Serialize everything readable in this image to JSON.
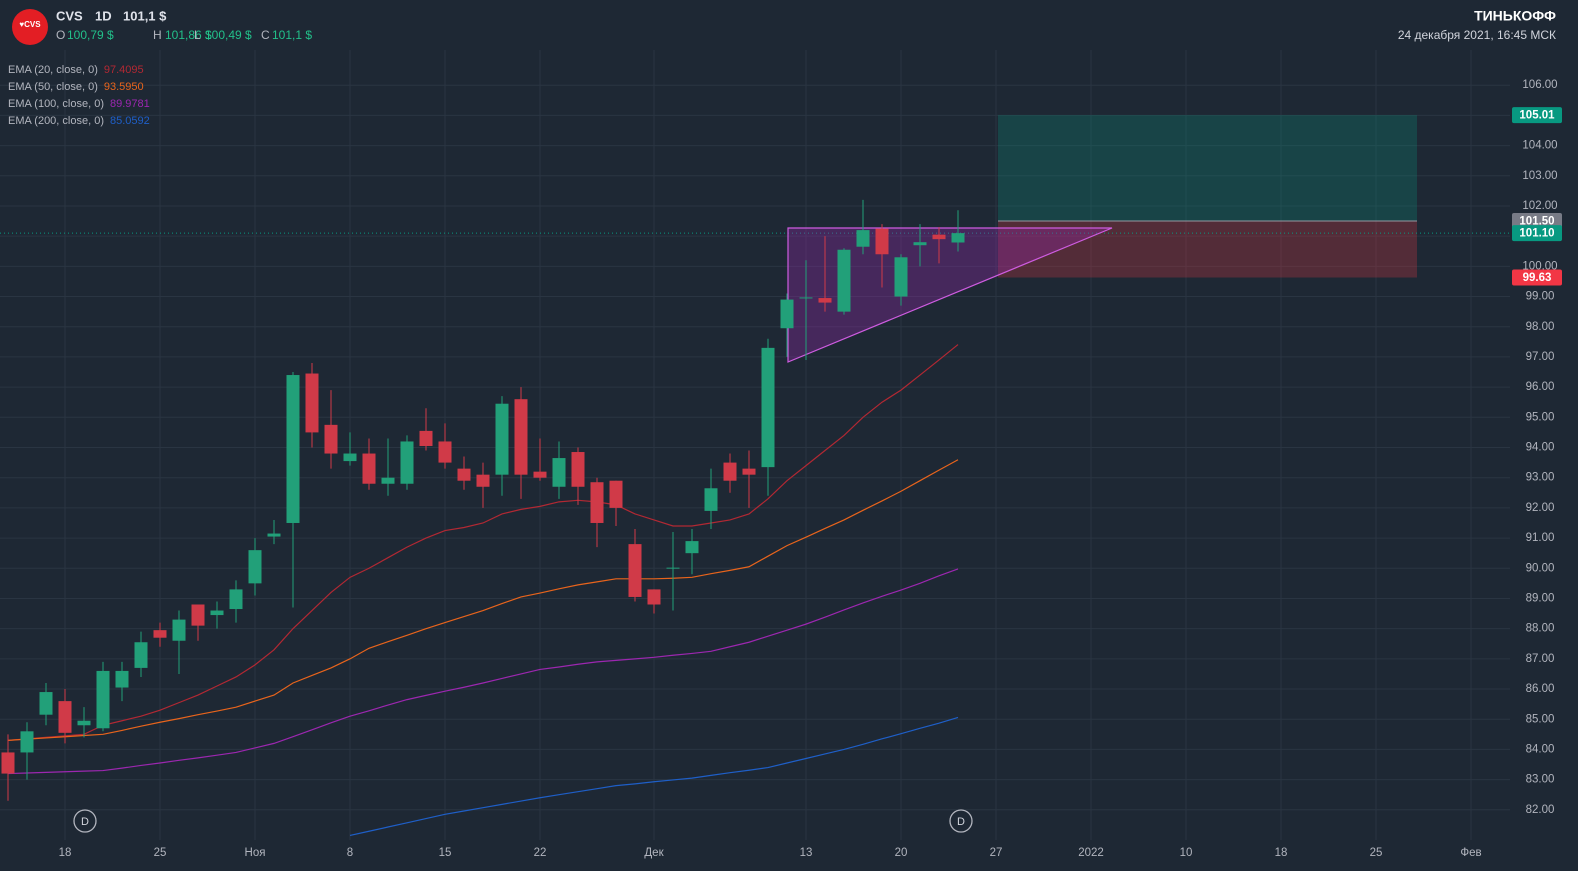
{
  "header": {
    "logo_text": "♥CVS",
    "symbol": "CVS",
    "interval": "1D",
    "price": "101,1 $",
    "open_label": "O",
    "open": "100,79 $",
    "high_label": "H",
    "high": "101,86 $",
    "low_label": "L",
    "low": "100,49 $",
    "close_label": "C",
    "close": "101,1 $",
    "brand": "ТИНЬКОФФ",
    "timestamp": "24 декабря 2021, 16:45 МСК"
  },
  "chart_data": {
    "type": "candlestick",
    "up_color": "#22a079",
    "down_color": "#d03a48",
    "grid": true,
    "categories": [
      null,
      null,
      null,
      "18",
      null,
      null,
      null,
      null,
      "25",
      null,
      null,
      null,
      null,
      "Ноя",
      null,
      null,
      null,
      null,
      "8",
      null,
      null,
      null,
      null,
      "15",
      null,
      null,
      null,
      null,
      "22",
      null,
      null,
      null,
      null,
      null,
      "Дек",
      null,
      null,
      null,
      null,
      null,
      null,
      null,
      "13",
      null,
      null,
      null,
      null,
      "20",
      null,
      null,
      null,
      null,
      "27",
      null,
      null,
      null,
      null,
      "2022",
      null,
      null,
      null,
      null,
      "10",
      null,
      null,
      null,
      null,
      "18",
      null,
      null,
      null,
      null,
      "25",
      null,
      null,
      null,
      null,
      "Фев",
      null,
      null
    ],
    "open": [
      83.9,
      83.9,
      85.15,
      85.6,
      84.8,
      84.7,
      86.05,
      86.7,
      87.95,
      87.6,
      88.8,
      88.45,
      88.65,
      89.5,
      91.05,
      91.5,
      96.45,
      94.75,
      93.55,
      93.8,
      92.8,
      92.8,
      94.55,
      94.2,
      93.3,
      93.1,
      93.1,
      95.6,
      93.2,
      92.7,
      93.85,
      92.85,
      92.9,
      90.8,
      89.3,
      90.0,
      90.5,
      91.9,
      93.5,
      93.3,
      93.35,
      97.95,
      98.95,
      98.95,
      98.5,
      100.65,
      101.25,
      99.0,
      100.7,
      101.05,
      100.79,
      null,
      null,
      null,
      null,
      null,
      null,
      null,
      null,
      null,
      null,
      null,
      null,
      null,
      null,
      null,
      null,
      null,
      null,
      null,
      null,
      null,
      null,
      null,
      null,
      null,
      null,
      null,
      null,
      null
    ],
    "high": [
      84.5,
      84.9,
      86.2,
      86.0,
      85.4,
      86.9,
      86.9,
      87.9,
      88.2,
      88.6,
      88.8,
      88.9,
      89.6,
      91.0,
      91.6,
      96.5,
      96.8,
      95.9,
      94.5,
      94.3,
      94.3,
      94.4,
      95.3,
      94.8,
      93.7,
      93.5,
      95.7,
      96.0,
      94.3,
      94.2,
      94.0,
      93.0,
      92.9,
      91.3,
      89.3,
      91.2,
      91.3,
      93.3,
      93.8,
      93.9,
      97.6,
      99.1,
      100.2,
      101.0,
      100.6,
      102.2,
      101.4,
      100.4,
      101.4,
      101.3,
      101.86,
      null,
      null,
      null,
      null,
      null,
      null,
      null,
      null,
      null,
      null,
      null,
      null,
      null,
      null,
      null,
      null,
      null,
      null,
      null,
      null,
      null,
      null,
      null,
      null,
      null,
      null,
      null,
      null,
      null
    ],
    "low": [
      82.3,
      83.0,
      84.8,
      84.2,
      84.4,
      84.6,
      85.6,
      86.4,
      87.4,
      86.5,
      87.6,
      88.0,
      88.2,
      89.1,
      90.8,
      88.7,
      94.0,
      93.3,
      93.4,
      92.6,
      92.4,
      92.6,
      93.9,
      93.3,
      92.6,
      92.0,
      92.4,
      92.3,
      92.9,
      92.3,
      92.1,
      90.7,
      91.4,
      88.9,
      88.5,
      88.6,
      89.8,
      91.3,
      92.5,
      92.0,
      92.4,
      97.0,
      96.9,
      98.5,
      98.4,
      100.4,
      99.3,
      98.7,
      100.0,
      100.1,
      100.49,
      null,
      null,
      null,
      null,
      null,
      null,
      null,
      null,
      null,
      null,
      null,
      null,
      null,
      null,
      null,
      null,
      null,
      null,
      null,
      null,
      null,
      null,
      null,
      null,
      null,
      null,
      null,
      null,
      null
    ],
    "close": [
      83.2,
      84.6,
      85.9,
      84.55,
      84.95,
      86.6,
      86.6,
      87.55,
      87.7,
      88.3,
      88.1,
      88.6,
      89.3,
      90.6,
      91.15,
      96.4,
      94.5,
      93.8,
      93.8,
      92.8,
      93.0,
      94.2,
      94.05,
      93.5,
      92.9,
      92.7,
      95.45,
      93.1,
      93.0,
      93.65,
      92.7,
      91.5,
      92.0,
      89.05,
      88.8,
      90.02,
      90.9,
      92.65,
      92.9,
      93.1,
      97.3,
      98.9,
      98.97,
      98.8,
      100.55,
      101.2,
      100.4,
      100.3,
      100.8,
      100.9,
      101.1,
      null,
      null,
      null,
      null,
      null,
      null,
      null,
      null,
      null,
      null,
      null,
      null,
      null,
      null,
      null,
      null,
      null,
      null,
      null,
      null,
      null,
      null,
      null,
      null,
      null,
      null,
      null,
      null,
      null
    ],
    "series": [
      {
        "name": "EMA (20, close, 0)",
        "legend_value": "97.4095",
        "color": "#b22833",
        "values": [
          84.3,
          84.35,
          84.4,
          84.45,
          84.5,
          84.8,
          84.95,
          85.1,
          85.3,
          85.55,
          85.8,
          86.1,
          86.4,
          86.8,
          87.3,
          88.0,
          88.6,
          89.2,
          89.7,
          90.0,
          90.35,
          90.7,
          91.0,
          91.25,
          91.35,
          91.5,
          91.8,
          91.95,
          92.05,
          92.2,
          92.25,
          92.2,
          92.1,
          91.8,
          91.6,
          91.4,
          91.4,
          91.5,
          91.6,
          91.8,
          92.3,
          92.9,
          93.4,
          93.9,
          94.4,
          95.0,
          95.5,
          95.9,
          96.4,
          96.9,
          97.4095,
          null,
          null,
          null,
          null,
          null,
          null,
          null,
          null,
          null,
          null,
          null,
          null,
          null,
          null,
          null,
          null,
          null,
          null,
          null,
          null,
          null,
          null,
          null,
          null,
          null,
          null,
          null,
          null,
          null
        ]
      },
      {
        "name": "EMA (50, close, 0)",
        "legend_value": "93.5950",
        "color": "#e8641c",
        "values": [
          84.3,
          84.34,
          84.38,
          84.42,
          84.46,
          84.5,
          84.63,
          84.77,
          84.9,
          85.02,
          85.15,
          85.27,
          85.4,
          85.6,
          85.8,
          86.2,
          86.45,
          86.7,
          87.0,
          87.35,
          87.57,
          87.78,
          88.0,
          88.2,
          88.4,
          88.6,
          88.83,
          89.05,
          89.18,
          89.32,
          89.45,
          89.55,
          89.65,
          89.65,
          89.65,
          89.67,
          89.7,
          89.82,
          89.93,
          90.05,
          90.4,
          90.75,
          91.03,
          91.32,
          91.6,
          91.92,
          92.23,
          92.55,
          92.9,
          93.25,
          93.595,
          null,
          null,
          null,
          null,
          null,
          null,
          null,
          null,
          null,
          null,
          null,
          null,
          null,
          null,
          null,
          null,
          null,
          null,
          null,
          null,
          null,
          null,
          null,
          null,
          null,
          null,
          null,
          null,
          null
        ]
      },
      {
        "name": "EMA (100, close, 0)",
        "legend_value": "89.9781",
        "color": "#9c27b0",
        "values": [
          83.2,
          83.22,
          83.24,
          83.26,
          83.28,
          83.3,
          83.38,
          83.47,
          83.55,
          83.64,
          83.72,
          83.81,
          83.9,
          84.05,
          84.2,
          84.42,
          84.65,
          84.88,
          85.1,
          85.28,
          85.47,
          85.65,
          85.79,
          85.93,
          86.06,
          86.2,
          86.35,
          86.5,
          86.65,
          86.73,
          86.82,
          86.9,
          86.95,
          87.0,
          87.05,
          87.12,
          87.18,
          87.25,
          87.4,
          87.55,
          87.75,
          87.95,
          88.15,
          88.38,
          88.62,
          88.85,
          89.07,
          89.28,
          89.5,
          89.75,
          89.9781,
          null,
          null,
          null,
          null,
          null,
          null,
          null,
          null,
          null,
          null,
          null,
          null,
          null,
          null,
          null,
          null,
          null,
          null,
          null,
          null,
          null,
          null,
          null,
          null,
          null,
          null,
          null,
          null,
          null
        ]
      },
      {
        "name": "EMA (200, close, 0)",
        "legend_value": "85.0592",
        "color": "#1e5fc8",
        "values": [
          null,
          null,
          null,
          null,
          null,
          null,
          null,
          null,
          null,
          null,
          null,
          null,
          null,
          null,
          null,
          null,
          null,
          null,
          81.15,
          81.29,
          81.43,
          81.57,
          81.71,
          81.85,
          81.96,
          82.07,
          82.18,
          82.29,
          82.4,
          82.5,
          82.6,
          82.7,
          82.8,
          82.86,
          82.93,
          82.99,
          83.05,
          83.14,
          83.23,
          83.31,
          83.4,
          83.55,
          83.7,
          83.85,
          84.0,
          84.17,
          84.35,
          84.52,
          84.7,
          84.87,
          85.0592,
          null,
          null,
          null,
          null,
          null,
          null,
          null,
          null,
          null,
          null,
          null,
          null,
          null,
          null,
          null,
          null,
          null,
          null,
          null,
          null,
          null,
          null,
          null,
          null,
          null,
          null,
          null,
          null,
          null
        ]
      }
    ],
    "ylim": [
      81,
      107
    ],
    "yticks": [
      {
        "value": 82,
        "label": "82.00"
      },
      {
        "value": 83,
        "label": "83.00"
      },
      {
        "value": 84,
        "label": "84.00"
      },
      {
        "value": 85,
        "label": "85.00"
      },
      {
        "value": 86,
        "label": "86.00"
      },
      {
        "value": 87,
        "label": "87.00"
      },
      {
        "value": 88,
        "label": "88.00"
      },
      {
        "value": 89,
        "label": "89.00"
      },
      {
        "value": 90,
        "label": "90.00"
      },
      {
        "value": 91,
        "label": "91.00"
      },
      {
        "value": 92,
        "label": "92.00"
      },
      {
        "value": 93,
        "label": "93.00"
      },
      {
        "value": 94,
        "label": "94.00"
      },
      {
        "value": 95,
        "label": "95.00"
      },
      {
        "value": 96,
        "label": "96.00"
      },
      {
        "value": 97,
        "label": "97.00"
      },
      {
        "value": 98,
        "label": "98.00"
      },
      {
        "value": 99,
        "label": "99.00"
      },
      {
        "value": 100,
        "label": "100.00"
      },
      {
        "value": 101,
        "label": "101.00"
      },
      {
        "value": 102,
        "label": "102.00"
      },
      {
        "value": 103,
        "label": "103.00"
      },
      {
        "value": 104,
        "label": "104.00"
      },
      {
        "value": 105,
        "label": "105.00"
      },
      {
        "value": 106,
        "label": "106.00"
      }
    ],
    "position": {
      "target": {
        "value": 105.01,
        "label": "105.01",
        "color": "#089981"
      },
      "entry": {
        "value": 101.5,
        "label": "101.50",
        "color": "#787b86"
      },
      "stop": {
        "value": 99.63,
        "label": "99.63",
        "color": "#f23645"
      }
    },
    "last_price_tag": {
      "value": 101.1,
      "label": "101.10",
      "color": "#089981"
    },
    "dividend_marker": "D"
  }
}
